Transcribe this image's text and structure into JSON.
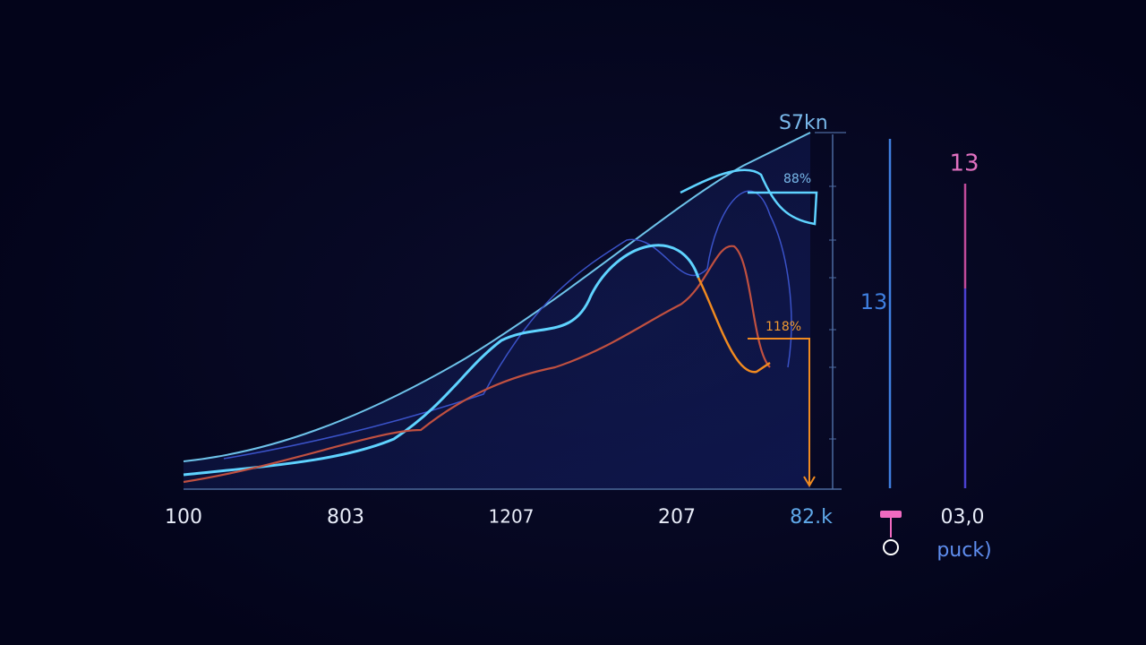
{
  "header": {
    "title": "S7kn"
  },
  "annotations": [
    "88%",
    "118%"
  ],
  "x_labels": [
    "100",
    "803",
    "1207",
    "207",
    "82.k"
  ],
  "side": {
    "top": "13",
    "middle": "13",
    "bottom": "03,0",
    "caption": "puck)"
  }
}
